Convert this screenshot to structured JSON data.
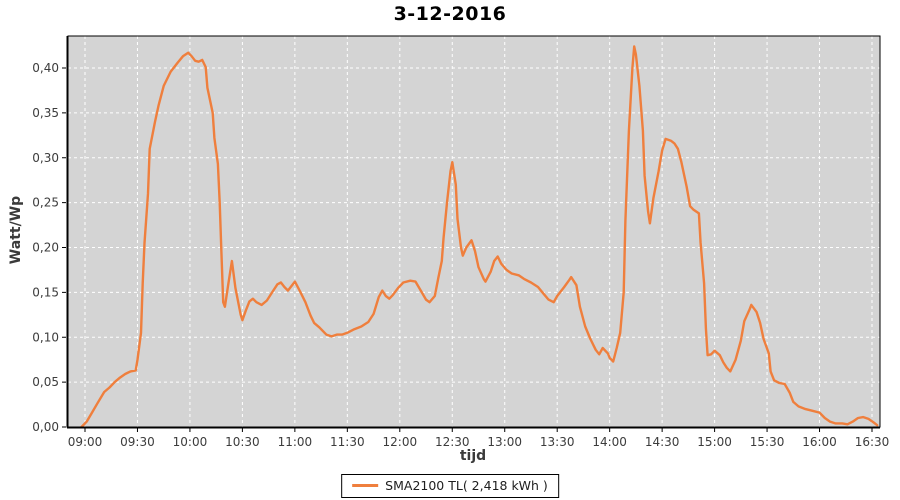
{
  "chart": {
    "title": "3-12-2016",
    "ylabel": "Watt/Wp",
    "xlabel": "tijd",
    "legend": {
      "label": "SMA2100 TL( 2,418 kWh )"
    },
    "colors": {
      "series": "#ef7f3d",
      "plot_background": "#d4d4d4",
      "grid": "#ffffff",
      "axis_text": "#3c3c3c",
      "axis_line": "#000000"
    }
  },
  "chart_data": {
    "type": "line",
    "title": "3-12-2016",
    "xlabel": "tijd",
    "ylabel": "Watt/Wp",
    "grid": true,
    "legend_position": "bottom",
    "x_ticks": [
      "09:00",
      "09:30",
      "10:00",
      "10:30",
      "11:00",
      "11:30",
      "12:00",
      "12:30",
      "13:00",
      "13:30",
      "14:00",
      "14:30",
      "15:00",
      "15:30",
      "16:00",
      "16:30"
    ],
    "y_ticks": [
      0.0,
      0.05,
      0.1,
      0.15,
      0.2,
      0.25,
      0.3,
      0.35,
      0.4
    ],
    "y_tick_labels": [
      "0,00",
      "0,05",
      "0,10",
      "0,15",
      "0,20",
      "0,25",
      "0,30",
      "0,35",
      "0,40"
    ],
    "ylim": [
      0,
      0.435
    ],
    "x_range": [
      "09:00",
      "16:30"
    ],
    "series": [
      {
        "name": "SMA2100 TL( 2,418 kWh )",
        "color": "#ef7f3d",
        "points": [
          [
            "08:58",
            0.0
          ],
          [
            "09:01",
            0.006
          ],
          [
            "09:04",
            0.016
          ],
          [
            "09:07",
            0.026
          ],
          [
            "09:11",
            0.039
          ],
          [
            "09:14",
            0.044
          ],
          [
            "09:17",
            0.05
          ],
          [
            "09:20",
            0.055
          ],
          [
            "09:23",
            0.059
          ],
          [
            "09:26",
            0.062
          ],
          [
            "09:29",
            0.063
          ],
          [
            "09:30",
            0.075
          ],
          [
            "09:32",
            0.105
          ],
          [
            "09:33",
            0.16
          ],
          [
            "09:34",
            0.205
          ],
          [
            "09:36",
            0.26
          ],
          [
            "09:37",
            0.31
          ],
          [
            "09:40",
            0.34
          ],
          [
            "09:42",
            0.358
          ],
          [
            "09:45",
            0.38
          ],
          [
            "09:49",
            0.396
          ],
          [
            "09:53",
            0.406
          ],
          [
            "09:56",
            0.413
          ],
          [
            "09:59",
            0.417
          ],
          [
            "10:01",
            0.413
          ],
          [
            "10:03",
            0.408
          ],
          [
            "10:05",
            0.407
          ],
          [
            "10:07",
            0.409
          ],
          [
            "10:09",
            0.401
          ],
          [
            "10:10",
            0.378
          ],
          [
            "10:13",
            0.35
          ],
          [
            "10:14",
            0.322
          ],
          [
            "10:16",
            0.293
          ],
          [
            "10:17",
            0.25
          ],
          [
            "10:18",
            0.195
          ],
          [
            "10:19",
            0.139
          ],
          [
            "10:20",
            0.134
          ],
          [
            "10:22",
            0.16
          ],
          [
            "10:24",
            0.185
          ],
          [
            "10:26",
            0.155
          ],
          [
            "10:29",
            0.125
          ],
          [
            "10:30",
            0.119
          ],
          [
            "10:32",
            0.13
          ],
          [
            "10:34",
            0.14
          ],
          [
            "10:36",
            0.143
          ],
          [
            "10:38",
            0.139
          ],
          [
            "10:41",
            0.136
          ],
          [
            "10:44",
            0.141
          ],
          [
            "10:47",
            0.15
          ],
          [
            "10:50",
            0.159
          ],
          [
            "10:52",
            0.161
          ],
          [
            "10:54",
            0.156
          ],
          [
            "10:56",
            0.152
          ],
          [
            "10:58",
            0.157
          ],
          [
            "11:00",
            0.162
          ],
          [
            "11:03",
            0.151
          ],
          [
            "11:06",
            0.139
          ],
          [
            "11:09",
            0.124
          ],
          [
            "11:11",
            0.116
          ],
          [
            "11:14",
            0.111
          ],
          [
            "11:18",
            0.103
          ],
          [
            "11:21",
            0.101
          ],
          [
            "11:24",
            0.103
          ],
          [
            "11:27",
            0.103
          ],
          [
            "11:30",
            0.105
          ],
          [
            "11:34",
            0.109
          ],
          [
            "11:38",
            0.112
          ],
          [
            "11:42",
            0.117
          ],
          [
            "11:45",
            0.126
          ],
          [
            "11:48",
            0.145
          ],
          [
            "11:50",
            0.152
          ],
          [
            "11:52",
            0.146
          ],
          [
            "11:54",
            0.143
          ],
          [
            "11:56",
            0.147
          ],
          [
            "11:59",
            0.155
          ],
          [
            "12:02",
            0.161
          ],
          [
            "12:06",
            0.163
          ],
          [
            "12:09",
            0.162
          ],
          [
            "12:12",
            0.152
          ],
          [
            "12:15",
            0.142
          ],
          [
            "12:17",
            0.139
          ],
          [
            "12:20",
            0.146
          ],
          [
            "12:22",
            0.166
          ],
          [
            "12:24",
            0.185
          ],
          [
            "12:25",
            0.21
          ],
          [
            "12:27",
            0.25
          ],
          [
            "12:29",
            0.285
          ],
          [
            "12:30",
            0.295
          ],
          [
            "12:32",
            0.27
          ],
          [
            "12:33",
            0.232
          ],
          [
            "12:35",
            0.2
          ],
          [
            "12:36",
            0.191
          ],
          [
            "12:38",
            0.2
          ],
          [
            "12:41",
            0.208
          ],
          [
            "12:43",
            0.196
          ],
          [
            "12:45",
            0.178
          ],
          [
            "12:48",
            0.165
          ],
          [
            "12:49",
            0.162
          ],
          [
            "12:52",
            0.173
          ],
          [
            "12:54",
            0.185
          ],
          [
            "12:56",
            0.19
          ],
          [
            "12:58",
            0.182
          ],
          [
            "13:01",
            0.175
          ],
          [
            "13:04",
            0.171
          ],
          [
            "13:08",
            0.169
          ],
          [
            "13:11",
            0.165
          ],
          [
            "13:15",
            0.161
          ],
          [
            "13:19",
            0.156
          ],
          [
            "13:22",
            0.149
          ],
          [
            "13:25",
            0.142
          ],
          [
            "13:28",
            0.139
          ],
          [
            "13:30",
            0.146
          ],
          [
            "13:34",
            0.156
          ],
          [
            "13:37",
            0.164
          ],
          [
            "13:38",
            0.167
          ],
          [
            "13:41",
            0.158
          ],
          [
            "13:43",
            0.134
          ],
          [
            "13:46",
            0.112
          ],
          [
            "13:49",
            0.098
          ],
          [
            "13:52",
            0.086
          ],
          [
            "13:54",
            0.081
          ],
          [
            "13:56",
            0.088
          ],
          [
            "13:59",
            0.082
          ],
          [
            "14:00",
            0.077
          ],
          [
            "14:02",
            0.073
          ],
          [
            "14:04",
            0.088
          ],
          [
            "14:06",
            0.105
          ],
          [
            "14:08",
            0.15
          ],
          [
            "14:09",
            0.23
          ],
          [
            "14:11",
            0.33
          ],
          [
            "14:13",
            0.4
          ],
          [
            "14:14",
            0.424
          ],
          [
            "14:15",
            0.415
          ],
          [
            "14:17",
            0.38
          ],
          [
            "14:19",
            0.33
          ],
          [
            "14:20",
            0.28
          ],
          [
            "14:22",
            0.24
          ],
          [
            "14:23",
            0.227
          ],
          [
            "14:25",
            0.255
          ],
          [
            "14:28",
            0.285
          ],
          [
            "14:30",
            0.308
          ],
          [
            "14:32",
            0.321
          ],
          [
            "14:35",
            0.319
          ],
          [
            "14:37",
            0.316
          ],
          [
            "14:39",
            0.31
          ],
          [
            "14:41",
            0.295
          ],
          [
            "14:44",
            0.268
          ],
          [
            "14:46",
            0.246
          ],
          [
            "14:48",
            0.242
          ],
          [
            "14:51",
            0.238
          ],
          [
            "14:52",
            0.205
          ],
          [
            "14:54",
            0.16
          ],
          [
            "14:55",
            0.11
          ],
          [
            "14:56",
            0.08
          ],
          [
            "14:58",
            0.081
          ],
          [
            "15:00",
            0.085
          ],
          [
            "15:03",
            0.08
          ],
          [
            "15:05",
            0.072
          ],
          [
            "15:07",
            0.066
          ],
          [
            "15:09",
            0.062
          ],
          [
            "15:12",
            0.075
          ],
          [
            "15:15",
            0.096
          ],
          [
            "15:17",
            0.118
          ],
          [
            "15:20",
            0.131
          ],
          [
            "15:21",
            0.136
          ],
          [
            "15:24",
            0.128
          ],
          [
            "15:26",
            0.116
          ],
          [
            "15:28",
            0.098
          ],
          [
            "15:31",
            0.082
          ],
          [
            "15:32",
            0.062
          ],
          [
            "15:34",
            0.052
          ],
          [
            "15:37",
            0.049
          ],
          [
            "15:40",
            0.048
          ],
          [
            "15:43",
            0.038
          ],
          [
            "15:45",
            0.028
          ],
          [
            "15:48",
            0.023
          ],
          [
            "15:52",
            0.02
          ],
          [
            "15:56",
            0.018
          ],
          [
            "16:00",
            0.016
          ],
          [
            "16:03",
            0.01
          ],
          [
            "16:06",
            0.006
          ],
          [
            "16:09",
            0.004
          ],
          [
            "16:13",
            0.004
          ],
          [
            "16:16",
            0.003
          ],
          [
            "16:19",
            0.006
          ],
          [
            "16:22",
            0.01
          ],
          [
            "16:25",
            0.011
          ],
          [
            "16:28",
            0.009
          ],
          [
            "16:31",
            0.005
          ],
          [
            "16:33",
            0.002
          ]
        ]
      }
    ]
  }
}
